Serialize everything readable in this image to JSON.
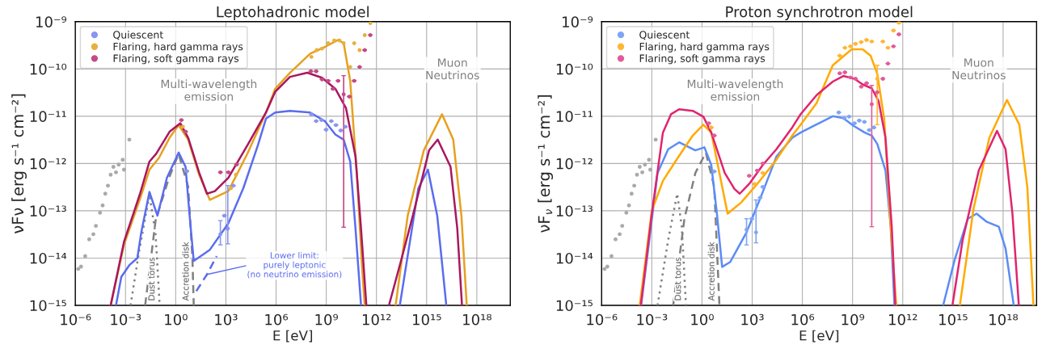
{
  "chart_data": [
    {
      "type": "line",
      "title": "Leptohadronic model",
      "xlabel": "E [eV]",
      "ylabel": "νFν [erg s⁻¹ cm⁻²]",
      "log": "xy",
      "xlim": [
        1e-06,
        1e+20
      ],
      "ylim": [
        1e-15,
        1e-09
      ],
      "xticks": [
        {
          "value": 1e-06,
          "label": "10⁻⁶"
        },
        {
          "value": 0.001,
          "label": "10⁻³"
        },
        {
          "value": 1,
          "label": "10⁰"
        },
        {
          "value": 1000.0,
          "label": "10³"
        },
        {
          "value": 1000000.0,
          "label": "10⁶"
        },
        {
          "value": 1000000000.0,
          "label": "10⁹"
        },
        {
          "value": 1000000000000.0,
          "label": "10¹²"
        },
        {
          "value": 1000000000000000.0,
          "label": "10¹⁵"
        },
        {
          "value": 1e+18,
          "label": "10¹⁸"
        }
      ],
      "yticks": [
        {
          "value": 1e-15,
          "label": "10⁻¹⁵"
        },
        {
          "value": 1e-14,
          "label": "10⁻¹⁴"
        },
        {
          "value": 1e-13,
          "label": "10⁻¹³"
        },
        {
          "value": 1e-12,
          "label": "10⁻¹²"
        },
        {
          "value": 1e-11,
          "label": "10⁻¹¹"
        },
        {
          "value": 1e-10,
          "label": "10⁻¹⁰"
        },
        {
          "value": 1e-09,
          "label": "10⁻⁹"
        }
      ],
      "grid": true,
      "legend": "top left",
      "annotations": [
        "Multi-wavelength\nemission",
        "Muon\nNeutrinos",
        {
          "text": "Lower limit:\npurely leptonic\n(no neutrino emission)",
          "x": 74,
          "y": 4.5e-15
        }
      ],
      "series": [
        {
          "type": "scatter",
          "marker": "circle",
          "color": "#aaaaaa",
          "x": [
            1.5e-06,
            2.2e-06,
            3.9e-06,
            6.8e-06,
            1.2e-05,
            1.7e-05,
            3e-05,
            4.3e-05,
            6.2e-05,
            8.9e-05,
            0.00013,
            0.00019,
            0.00027,
            0.00039,
            0.00068,
            0.00081,
            0.0017
          ],
          "values": [
            5.9e-15,
            6.6e-15,
            1.1e-14,
            2.5e-14,
            3.2e-14,
            4.8e-14,
            9.1e-14,
            1.3e-13,
            2.3e-13,
            3.4e-13,
            5.8e-13,
            8.5e-13,
            6.5e-13,
            9.5e-13,
            1.2e-12,
            7.4e-13,
            3.2e-12
          ]
        },
        {
          "name": "Dust torus",
          "line_style": "dotted",
          "color": "#808080",
          "x": [
            0.002,
            0.0063,
            0.027,
            0.063,
            0.11
          ],
          "values": [
            1e-15,
            1.3e-14,
            2.2e-13,
            3.2e-14,
            1e-15
          ]
        },
        {
          "name": "Accretion disk",
          "line_style": "dashed",
          "color": "#808080",
          "x": [
            0.015,
            0.063,
            0.4,
            1.5,
            5.6,
            10,
            12
          ],
          "values": [
            1e-15,
            6.3e-14,
            5e-13,
            1.6e-12,
            3.2e-13,
            1e-14,
            1e-15
          ]
        },
        {
          "line_style": "solid",
          "color": "#5a6cf0",
          "x": [
            0.00027,
            0.00056,
            0.0017,
            0.0051,
            0.0089,
            0.027,
            0.081,
            0.3,
            1.5,
            3.9,
            6.8,
            12,
            110,
            1400,
            11000.0,
            81000.0,
            250000.0,
            890000.0,
            6800000.0,
            110000000.0,
            810000000.0,
            3500000000.0,
            11000000000.0,
            27000000000.0,
            56000000000.0,
            120000000000.0,
            1000000000000.0,
            25000000000000.0,
            320000000000000.0,
            1200000000000000.0,
            4300000000000000.0,
            1.5e+16
          ],
          "values": [
            1e-15,
            4e-15,
            7.1e-15,
            1e-14,
            3.6e-14,
            2.5e-13,
            7.9e-14,
            5e-13,
            1.7e-12,
            8.5e-13,
            7.9e-14,
            8.7e-15,
            1.5e-14,
            5.4e-14,
            3e-13,
            2.4e-12,
            8.9e-12,
            1.2e-11,
            1.3e-11,
            1.2e-11,
            7.9e-12,
            4.1e-12,
            3.2e-12,
            1.1e-12,
            4.2e-14,
            1e-15,
            null,
            1e-15,
            3e-13,
            7.4e-13,
            7.9e-14,
            1e-15
          ]
        },
        {
          "line_style": "dashed",
          "color": "#5a6cf0",
          "x": [
            17,
            74,
            280
          ],
          "values": [
            2e-15,
            4.5e-15,
            1.1e-14
          ]
        },
        {
          "line_style": "solid",
          "color": "#e6a01f",
          "x": [
            0.00013,
            0.00081,
            0.0074,
            0.027,
            0.098,
            0.43,
            1.5,
            5.6,
            25,
            110,
            1400,
            19000.0,
            250000.0,
            890000.0,
            6800000.0,
            110000000.0,
            810000000.0,
            5100000000.0,
            11000000000.0,
            27000000000.0,
            68000000000.0,
            140000000000.0,
            200000000000.0,
            1000000000000.0,
            14000000000000.0,
            74000000000000.0,
            680000000000000.0,
            8300000000000000.0,
            3.9e+16,
            1.2e+17,
            2.5e+17
          ],
          "values": [
            1e-15,
            1.9e-14,
            1.8e-13,
            7.4e-13,
            1.3e-12,
            3.5e-12,
            6.5e-12,
            3.2e-12,
            5.8e-13,
            1.7e-13,
            2.6e-13,
            1.6e-12,
            1.2e-11,
            3.8e-11,
            8.3e-11,
            2.1e-10,
            2.9e-10,
            4.1e-10,
            3.5e-10,
            5.6e-11,
            5.8e-13,
            5.9e-15,
            1e-15,
            null,
            1e-15,
            7.9e-14,
            1.9e-12,
            1.1e-11,
            3.2e-12,
            7.9e-14,
            1e-15
          ]
        },
        {
          "line_style": "solid",
          "color": "#a8175f",
          "x": [
            0.00013,
            0.00081,
            0.0074,
            0.027,
            0.068,
            0.43,
            1.9,
            5.6,
            25,
            74,
            220,
            1400,
            19000.0,
            250000.0,
            890000.0,
            6800000.0,
            74000000.0,
            560000000.0,
            3500000000.0,
            15000000000.0,
            56000000000.0,
            120000000000.0,
            250000000000.0,
            1000000000000.0,
            5600000000000.0,
            35000000000000.0,
            150000000000000.0,
            1400000000000000.0,
            4600000000000000.0,
            2.7e+16,
            6.8e+16,
            1.3e+17
          ],
          "values": [
            1e-15,
            2.2e-14,
            2.3e-13,
            1.1e-12,
            1.6e-12,
            4.7e-12,
            7.1e-12,
            3.5e-12,
            6.5e-13,
            2.3e-13,
            2.6e-13,
            5e-13,
            2.4e-12,
            1.2e-11,
            3.3e-11,
            6.8e-11,
            8.3e-11,
            6.5e-11,
            3.8e-11,
            1.5e-11,
            1.4e-12,
            4.2e-14,
            1e-15,
            null,
            1e-15,
            1.1e-14,
            7.9e-14,
            1.9e-12,
            3.2e-12,
            8.5e-13,
            4.2e-14,
            1e-15
          ]
        },
        {
          "type": "scatter",
          "name": "Quiescent",
          "marker": "circle",
          "color": "#8a95f0",
          "x": [
            4.7,
            470,
            810,
            1300,
            2800,
            130000000.0,
            250000000.0,
            520000000.0,
            980000000.0,
            2000000000.0,
            3800000000.0,
            7400000000.0,
            14000000000.0
          ],
          "values": [
            6.9e-13,
            3.2e-14,
            7.9e-14,
            4.2e-14,
            3.4e-13,
            1.1e-11,
            7.9e-12,
            8.3e-12,
            5.2e-12,
            7.9e-12,
            6.5e-12,
            5e-12,
            6e-12
          ],
          "errors": [
            null,
            [
              1.9e-14,
              6.2e-14
            ],
            null,
            [
              2e-14,
              3.4e-13
            ],
            null,
            null,
            null,
            null,
            null,
            null,
            null,
            null,
            null
          ]
        },
        {
          "type": "scatter",
          "name": "Flaring, hard gamma rays",
          "marker": "circle",
          "color": "#e8b040",
          "x": [
            2.7,
            2000,
            4000,
            130000000.0,
            270000000.0,
            560000000.0,
            1300000000.0,
            3000000000.0,
            6200000000.0,
            11000000000.0,
            27000000000.0,
            47000000000.0,
            98000000000.0,
            200000000000.0,
            430000000000.0
          ],
          "values": [
            6e-12,
            3e-13,
            5.8e-13,
            1.8e-10,
            2.5e-10,
            2.7e-10,
            3.5e-10,
            4e-10,
            4e-10,
            3.5e-10,
            1.1e-10,
            3.5e-10,
            2.5e-10,
            5.2e-10,
            9.3e-10
          ]
        },
        {
          "type": "scatter",
          "name": "Flaring, soft gamma rays",
          "marker": "circle",
          "color": "#c44a86",
          "x": [
            2.2,
            3.9,
            470,
            1400,
            4300,
            120000000.0,
            250000000.0,
            560000000.0,
            1300000000.0,
            2500000000.0,
            5100000000.0,
            11000000000.0,
            24000000000.0,
            47000000000.0,
            98000000000.0,
            200000000000.0,
            430000000000.0
          ],
          "values": [
            8.3e-12,
            4.7e-12,
            6.5e-13,
            6.5e-13,
            9.5e-13,
            8.9e-11,
            8.9e-11,
            6e-11,
            5.6e-11,
            3.8e-11,
            5.6e-11,
            2.9e-11,
            2.6e-11,
            5.6e-11,
            1.1e-10,
            2.5e-10,
            5.2e-10
          ],
          "errors": [
            null,
            null,
            null,
            null,
            null,
            null,
            null,
            null,
            null,
            null,
            null,
            [
              4.5e-14,
              7.2e-11
            ],
            null,
            null,
            null,
            null,
            null
          ]
        }
      ]
    },
    {
      "type": "line",
      "title": "Proton synchrotron model",
      "xlabel": "E [eV]",
      "ylabel": "νF$_{ν}$ [erg s⁻¹ cm⁻²]",
      "log": "xy",
      "xlim": [
        1e-06,
        1e+20
      ],
      "ylim": [
        1e-15,
        1e-09
      ],
      "xticks": [
        {
          "value": 1e-06,
          "label": "10⁻⁶"
        },
        {
          "value": 0.001,
          "label": "10⁻³"
        },
        {
          "value": 1,
          "label": "10⁰"
        },
        {
          "value": 1000.0,
          "label": "10³"
        },
        {
          "value": 1000000.0,
          "label": "10⁶"
        },
        {
          "value": 1000000000.0,
          "label": "10⁹"
        },
        {
          "value": 1000000000000.0,
          "label": "10¹²"
        },
        {
          "value": 1000000000000000.0,
          "label": "10¹⁵"
        },
        {
          "value": 1e+18,
          "label": "10¹⁸"
        }
      ],
      "yticks": [
        {
          "value": 1e-15,
          "label": "10⁻¹⁵"
        },
        {
          "value": 1e-14,
          "label": "10⁻¹⁴"
        },
        {
          "value": 1e-13,
          "label": "10⁻¹³"
        },
        {
          "value": 1e-12,
          "label": "10⁻¹²"
        },
        {
          "value": 1e-11,
          "label": "10⁻¹¹"
        },
        {
          "value": 1e-10,
          "label": "10⁻¹⁰"
        },
        {
          "value": 1e-09,
          "label": "10⁻⁹"
        }
      ],
      "grid": true,
      "legend": "top left",
      "annotations": [
        "Multi-wavelength\nemission",
        "Muon\nNeutrinos"
      ],
      "series": [
        {
          "type": "scatter",
          "marker": "circle",
          "color": "#aaaaaa",
          "x": [
            1.5e-06,
            2.2e-06,
            3.9e-06,
            6.8e-06,
            1.2e-05,
            1.7e-05,
            3e-05,
            4.3e-05,
            6.2e-05,
            8.9e-05,
            0.00013,
            0.00019,
            0.00027,
            0.00039,
            0.00068,
            0.00081,
            0.0017
          ],
          "values": [
            5.9e-15,
            6.6e-15,
            1.1e-14,
            2.5e-14,
            3.2e-14,
            4.8e-14,
            9.1e-14,
            1.3e-13,
            2.3e-13,
            3.4e-13,
            5.8e-13,
            8.5e-13,
            6.5e-13,
            9.5e-13,
            1.2e-12,
            7.4e-13,
            3.2e-12
          ]
        },
        {
          "name": "Dust torus",
          "line_style": "dotted",
          "color": "#808080",
          "x": [
            0.0022,
            0.0095,
            0.033,
            0.062,
            0.11
          ],
          "values": [
            1e-15,
            2.4e-14,
            2.3e-13,
            4.6e-14,
            1e-15
          ]
        },
        {
          "name": "Accretion disk",
          "line_style": "dashed",
          "color": "#808080",
          "x": [
            0.019,
            0.089,
            0.4,
            1.7,
            5.4,
            11
          ],
          "values": [
            1e-15,
            6.8e-14,
            6.3e-13,
            1.7e-12,
            3.2e-13,
            1e-15
          ]
        },
        {
          "line_style": "solid",
          "color": "#5b8cf5",
          "x": [
            0.00023,
            0.00071,
            0.0022,
            0.0095,
            0.043,
            0.4,
            1.4,
            3.6,
            7.8,
            16,
            49,
            460,
            4300,
            28000.0,
            250000.0,
            780000.0,
            6500000.0,
            66000000.0,
            280000000.0,
            1200000000.0,
            5400000000.0,
            14000000000.0,
            30000000000.0,
            93000000000.0,
            190000000000.0,
            320000000000.0,
            10000000000000.0,
            260000000000000.0,
            1300000000000000.0,
            7800000000000000.0,
            2.6e+16,
            1e+17,
            5.5e+17,
            1.4e+18,
            4.3e+18
          ],
          "values": [
            1e-15,
            2.4e-14,
            6.3e-13,
            2e-12,
            2.8e-12,
            1.9e-12,
            2.2e-12,
            9.3e-13,
            8.7e-14,
            6.5e-15,
            8.3e-15,
            3.5e-14,
            2.5e-13,
            1.4e-12,
            3.5e-12,
            4.5e-12,
            6.6e-12,
            1e-11,
            9.1e-12,
            6.2e-12,
            4.5e-12,
            3.9e-12,
            2.6e-12,
            7.1e-13,
            4.6e-14,
            1e-15,
            null,
            1e-15,
            9.5e-15,
            6.8e-14,
            8.7e-14,
            5.9e-14,
            4.6e-14,
            1.6e-14,
            1e-15
          ]
        },
        {
          "line_style": "solid",
          "color": "#ffaa00",
          "x": [
            0.00019,
            0.001,
            0.0046,
            0.03,
            0.28,
            1.2,
            3.6,
            11,
            34,
            220,
            2000,
            28000.0,
            250000.0,
            780000.0,
            7100000.0,
            66000000.0,
            890000000.0,
            4000000000.0,
            12000000000.0,
            30000000000.0,
            78000000000.0,
            190000000000.0,
            410000000000.0,
            10000000000000.0,
            2600000000000000.0,
            1.7e+16,
            1.5e+17,
            1.7e+18,
            9.3e+18,
            2.8e+19,
            6.5e+19
          ],
          "values": [
            1e-15,
            1e-13,
            4.3e-13,
            1.2e-12,
            3.9e-12,
            6.6e-12,
            4.5e-12,
            6.3e-13,
            8.7e-14,
            1.5e-13,
            3.7e-13,
            1.2e-12,
            3.9e-12,
            6.6e-12,
            1.9e-11,
            1.2e-10,
            2.6e-10,
            2.6e-10,
            1.9e-10,
            7.9e-11,
            8.7e-12,
            4.6e-14,
            1e-15,
            null,
            1e-15,
            1.1e-13,
            3.5e-12,
            2.2e-11,
            6.6e-12,
            3.2e-13,
            1e-15
          ]
        },
        {
          "line_style": "solid",
          "color": "#e0246e",
          "x": [
            0.00022,
            0.001,
            0.0046,
            0.014,
            0.043,
            0.28,
            1.2,
            3.6,
            23,
            87,
            180,
            660,
            4300,
            28000.0,
            250000.0,
            780000.0,
            7100000.0,
            66000000.0,
            280000000.0,
            1300000000.0,
            4000000000.0,
            14000000000.0,
            36000000000.0,
            93000000000.0,
            220000000000.0,
            360000000000.0,
            10000000000000.0,
            930000000000000.0,
            3800000000000000.0,
            3.5e+16,
            4.3e+17,
            1.4e+18,
            3.6e+18,
            8.7e+18
          ],
          "values": [
            1e-15,
            8.7e-14,
            4.5e-12,
            1.1e-11,
            1.4e-11,
            1.3e-11,
            9.8e-12,
            4.5e-12,
            6.3e-13,
            2.9e-13,
            2.3e-13,
            3.7e-13,
            9.3e-13,
            2e-12,
            5.8e-12,
            1.1e-11,
            2.8e-11,
            5.4e-11,
            7.1e-11,
            6.2e-11,
            4.7e-11,
            3.9e-11,
            2.1e-11,
            3.5e-12,
            4.6e-14,
            1e-15,
            null,
            1e-15,
            2.4e-14,
            7.1e-13,
            4.9e-12,
            2e-12,
            8.7e-14,
            1e-15
          ]
        },
        {
          "type": "scatter",
          "name": "Quiescent",
          "marker": "circle",
          "color": "#7ea6f5",
          "x": [
            5.4,
            460,
            950,
            1700,
            3000,
            4300,
            150000000.0,
            320000000.0,
            620000000.0,
            1300000000.0,
            2500000000.0,
            5100000000.0,
            10000000000.0,
            19000000000.0
          ],
          "values": [
            6.8e-13,
            4e-14,
            6.8e-14,
            3.5e-14,
            1.9e-13,
            3.2e-13,
            1.2e-11,
            9.1e-12,
            9.8e-12,
            7.1e-12,
            8.1e-12,
            7.6e-12,
            5.1e-12,
            5.8e-12
          ],
          "errors": [
            null,
            [
              1.9e-14,
              6.8e-14
            ],
            null,
            [
              2.1e-14,
              1.7e-13
            ],
            null,
            null,
            null,
            null,
            null,
            null,
            null,
            null,
            null,
            null
          ]
        },
        {
          "type": "scatter",
          "name": "Flaring, hard gamma rays",
          "marker": "circle",
          "color": "#ffb733",
          "x": [
            3.6,
            1400,
            4300,
            170000000.0,
            350000000.0,
            740000000.0,
            1500000000.0,
            3300000000.0,
            6900000000.0,
            14000000000.0,
            30000000000.0,
            65000000000.0,
            130000000000.0,
            280000000000.0,
            590000000000.0
          ],
          "values": [
            5.8e-12,
            3.7e-13,
            6.3e-13,
            1.9e-10,
            2.8e-10,
            3e-10,
            3.4e-10,
            3.7e-10,
            4.1e-10,
            3.8e-10,
            6.2e-11,
            3.8e-10,
            2.8e-10,
            6.5e-10,
            9.5e-10
          ],
          "errors": [
            null,
            null,
            null,
            null,
            null,
            null,
            null,
            null,
            null,
            null,
            [
              6.6e-12,
              1.2e-10
            ],
            null,
            null,
            null,
            null
          ]
        },
        {
          "type": "scatter",
          "name": "Flaring, soft gamma rays",
          "marker": "circle",
          "color": "#e25b98",
          "x": [
            2.5,
            5.4,
            660,
            2000,
            4300,
            170000000.0,
            350000000.0,
            740000000.0,
            1500000000.0,
            3300000000.0,
            6900000000.0,
            14000000000.0,
            30000000000.0,
            65000000000.0,
            130000000000.0,
            280000000000.0,
            590000000000.0
          ],
          "values": [
            7.1e-12,
            3.9e-12,
            5.5e-13,
            7.1e-13,
            1e-12,
            8.1e-11,
            8.5e-11,
            6.6e-11,
            6.2e-11,
            4.2e-11,
            5e-11,
            1.8e-11,
            3.2e-11,
            6.2e-11,
            1.3e-10,
            3e-10,
            5.4e-10
          ],
          "errors": [
            null,
            null,
            null,
            null,
            null,
            null,
            null,
            null,
            null,
            null,
            null,
            [
              4.6e-14,
              4.5e-11
            ],
            null,
            null,
            null,
            null,
            null
          ]
        }
      ]
    }
  ]
}
